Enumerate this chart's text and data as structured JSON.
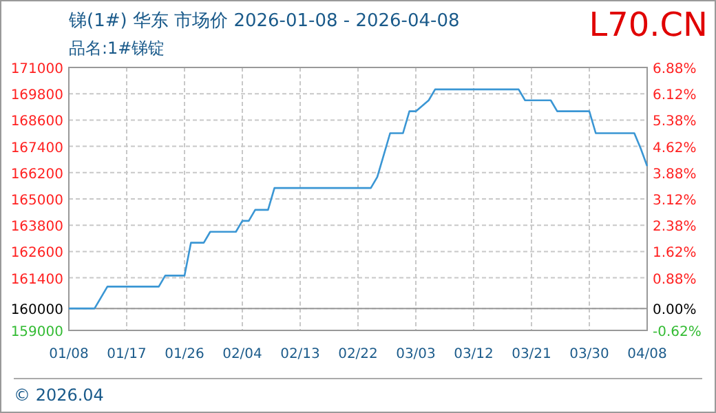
{
  "chart_data": {
    "type": "line",
    "title": "锑(1#) 华东 市场价 2026-01-08 - 2026-04-08",
    "subtitle": "品名:1#锑锭",
    "annotations": [
      "L70.CN",
      "© 2026.04"
    ],
    "xlim": [
      "2026-01-08",
      "2026-04-08"
    ],
    "xticks": [
      {
        "value": "2026-01-08",
        "label": "01/08"
      },
      {
        "value": "2026-01-17",
        "label": "01/17"
      },
      {
        "value": "2026-01-26",
        "label": "01/26"
      },
      {
        "value": "2026-02-04",
        "label": "02/04"
      },
      {
        "value": "2026-02-13",
        "label": "02/13"
      },
      {
        "value": "2026-02-22",
        "label": "02/22"
      },
      {
        "value": "2026-03-03",
        "label": "03/03"
      },
      {
        "value": "2026-03-12",
        "label": "03/12"
      },
      {
        "value": "2026-03-21",
        "label": "03/21"
      },
      {
        "value": "2026-03-30",
        "label": "03/30"
      },
      {
        "value": "2026-04-08",
        "label": "04/08"
      }
    ],
    "ylim": [
      159000,
      171000
    ],
    "yticks": [
      159000,
      160000,
      161400,
      162600,
      163800,
      165000,
      166200,
      167400,
      168600,
      169800,
      171000
    ],
    "y2lim": [
      -0.625,
      6.875
    ],
    "y2ticks": [
      {
        "value": -0.625,
        "label": "-0.62%"
      },
      {
        "value": 0,
        "label": "0.00%"
      },
      {
        "value": 0.875,
        "label": "0.88%"
      },
      {
        "value": 1.625,
        "label": "1.62%"
      },
      {
        "value": 2.375,
        "label": "2.38%"
      },
      {
        "value": 3.125,
        "label": "3.12%"
      },
      {
        "value": 3.875,
        "label": "3.88%"
      },
      {
        "value": 4.625,
        "label": "4.62%"
      },
      {
        "value": 5.375,
        "label": "5.38%"
      },
      {
        "value": 6.125,
        "label": "6.12%"
      },
      {
        "value": 6.875,
        "label": "6.88%"
      }
    ],
    "ref_lines": [
      {
        "axis": "y2",
        "value": 0,
        "color": "#999999",
        "line_style": "solid"
      }
    ],
    "grid": true,
    "line_style": "solid",
    "marker": "none",
    "series": [
      {
        "color": "#3a96d4",
        "x": [
          "2026-01-08",
          "2026-01-12",
          "2026-01-14",
          "2026-01-22",
          "2026-01-23",
          "2026-01-26",
          "2026-01-27",
          "2026-01-29",
          "2026-01-30",
          "2026-02-03",
          "2026-02-04",
          "2026-02-05",
          "2026-02-06",
          "2026-02-08",
          "2026-02-09",
          "2026-02-24",
          "2026-02-25",
          "2026-02-26",
          "2026-02-27",
          "2026-03-01",
          "2026-03-02",
          "2026-03-03",
          "2026-03-05",
          "2026-03-06",
          "2026-03-19",
          "2026-03-20",
          "2026-03-24",
          "2026-03-25",
          "2026-03-30",
          "2026-03-31",
          "2026-04-06",
          "2026-04-07",
          "2026-04-08"
        ],
        "values": [
          160000,
          160000,
          161000,
          161000,
          161500,
          161500,
          163000,
          163000,
          163500,
          163500,
          164000,
          164000,
          164500,
          164500,
          165500,
          165500,
          166000,
          167000,
          168000,
          168000,
          169000,
          169000,
          169500,
          170000,
          170000,
          169500,
          169500,
          169000,
          169000,
          168000,
          168000,
          167300,
          166500
        ]
      }
    ]
  }
}
